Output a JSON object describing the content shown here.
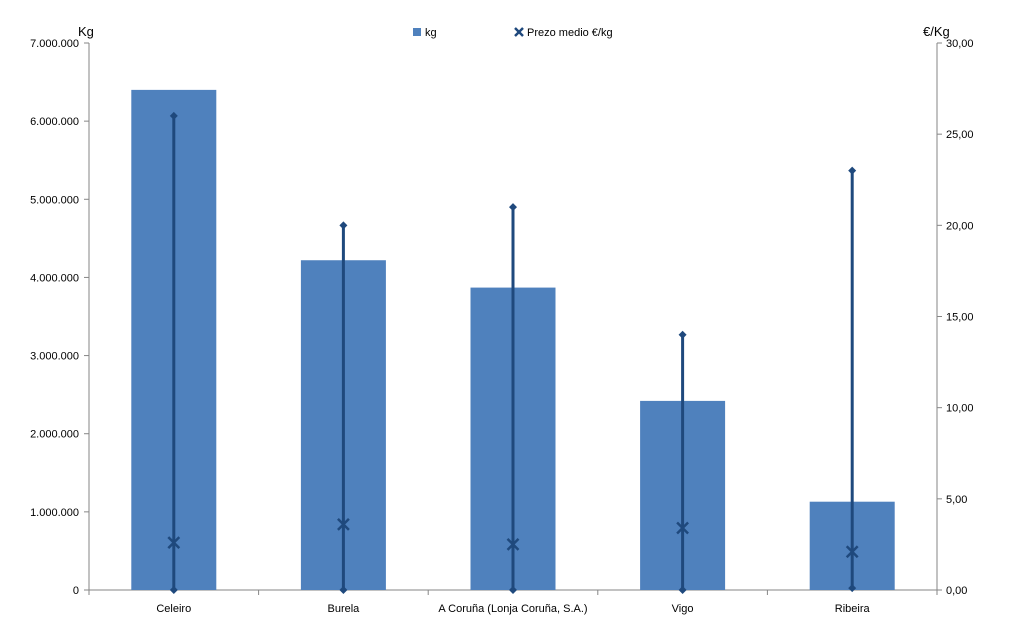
{
  "chart_data": {
    "type": "bar",
    "categories": [
      "Celeiro",
      "Burela",
      "A Coruña (Lonja Coruña, S.A.)",
      "Vigo",
      "Ribeira"
    ],
    "series": [
      {
        "name": "kg",
        "type": "bar",
        "axis": "left",
        "values": [
          6400000,
          4220000,
          3870000,
          2420000,
          1130000
        ]
      },
      {
        "name": "Prezo medio €/kg",
        "type": "scatter",
        "axis": "right",
        "values": [
          2.6,
          3.6,
          2.5,
          3.4,
          2.1
        ],
        "min": [
          0.0,
          0.0,
          0.0,
          0.0,
          0.1
        ],
        "max": [
          26.0,
          20.0,
          21.0,
          14.0,
          23.0
        ]
      }
    ],
    "ylabel": "Kg",
    "y2label": "€/Kg",
    "ylim": [
      0,
      7000000
    ],
    "y2lim": [
      0,
      30
    ],
    "y_ticks": [
      "0",
      "1.000.000",
      "2.000.000",
      "3.000.000",
      "4.000.000",
      "5.000.000",
      "6.000.000",
      "7.000.000"
    ],
    "y2_ticks": [
      "0,00",
      "5,00",
      "10,00",
      "15,00",
      "20,00",
      "25,00",
      "30,00"
    ],
    "grid": false,
    "legend": "top",
    "colors": {
      "bar": "#4f81bd",
      "marker": "#1f497d",
      "axis": "#868686"
    }
  }
}
